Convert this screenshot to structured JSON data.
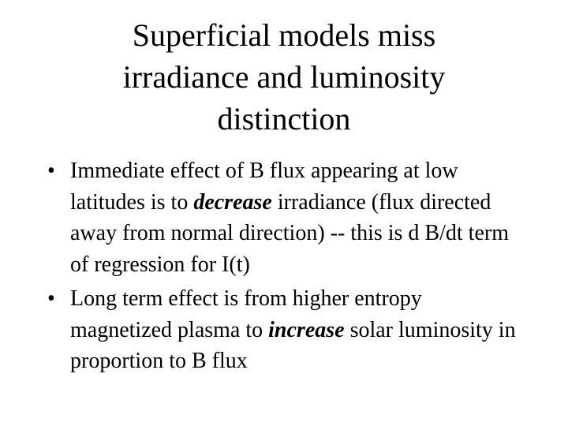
{
  "title_lines": [
    "Superficial models miss",
    "irradiance and luminosity",
    "distinction"
  ],
  "bullets": [
    {
      "before": "Immediate effect of B flux appearing at low latitudes is to ",
      "emphasis": "decrease",
      "after": " irradiance (flux directed away from normal direction) -- this is d B/dt term of regression for I(t)"
    },
    {
      "before": "Long term effect is from higher entropy magnetized plasma to ",
      "emphasis": "increase",
      "after": " solar luminosity in proportion to B flux"
    }
  ]
}
